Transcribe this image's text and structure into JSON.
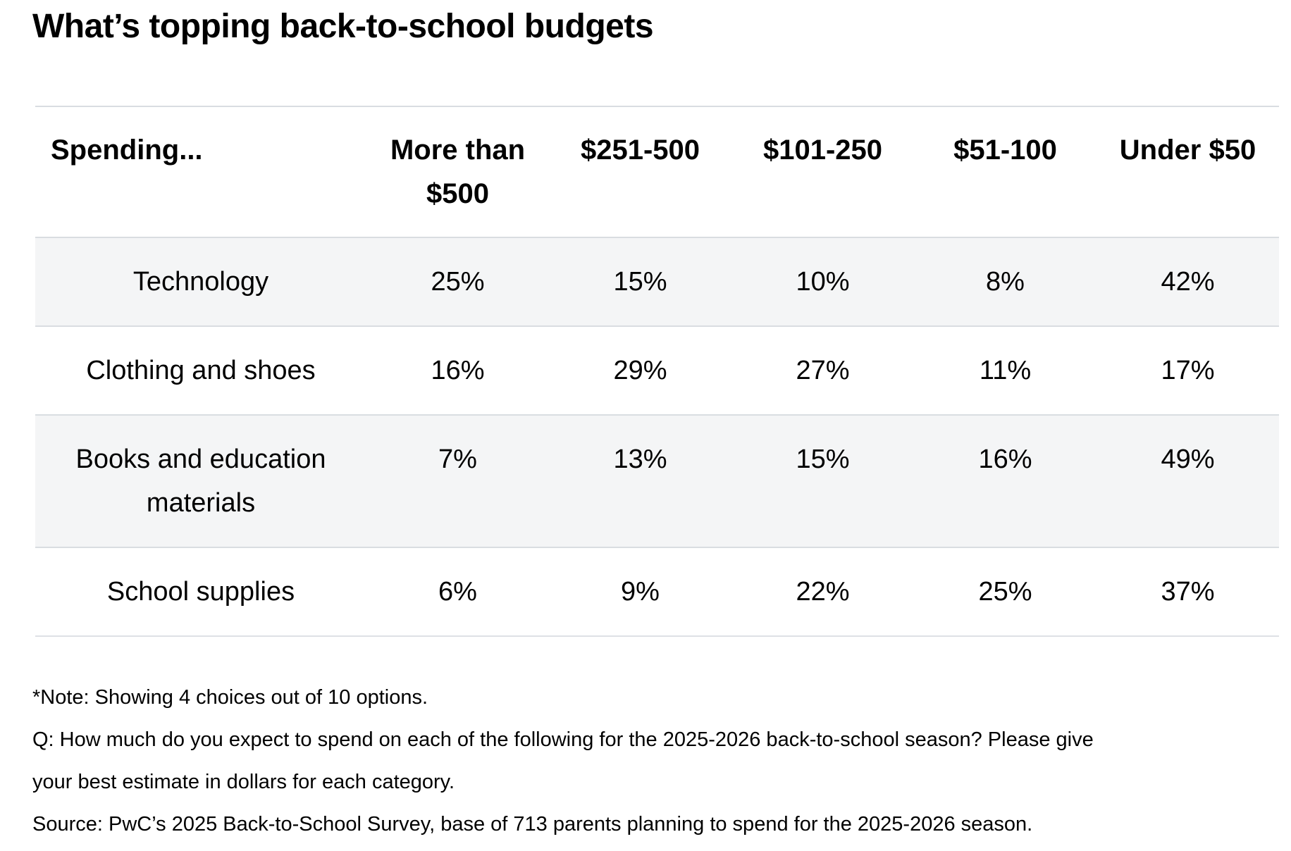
{
  "title": "What’s topping back-to-school budgets",
  "table": {
    "columns": [
      "Spending...",
      "More than $500",
      "$251-500",
      "$101-250",
      "$51-100",
      "Under $50"
    ],
    "rows": [
      {
        "label": "Technology",
        "values": [
          "25%",
          "15%",
          "10%",
          "8%",
          "42%"
        ]
      },
      {
        "label": "Clothing and shoes",
        "values": [
          "16%",
          "29%",
          "27%",
          "11%",
          "17%"
        ]
      },
      {
        "label": "Books and education materials",
        "values": [
          "7%",
          "13%",
          "15%",
          "16%",
          "49%"
        ]
      },
      {
        "label": "School supplies",
        "values": [
          "6%",
          "9%",
          "22%",
          "25%",
          "37%"
        ]
      }
    ]
  },
  "footer": {
    "lines": [
      "*Note: Showing 4 choices out of 10 options.",
      "Q: How much do you expect to spend on each of the following for the 2025-2026 back-to-school season? Please give",
      "your best estimate in dollars for each category.",
      "Source: PwC’s 2025 Back-to-School Survey, base of 713 parents planning to spend for the 2025-2026 season."
    ]
  },
  "colors": {
    "text": "#000000",
    "row_stripe": "#f4f5f6",
    "border": "#d9dde1",
    "background": "#ffffff"
  },
  "chart_data": {
    "type": "table",
    "title": "What’s topping back-to-school budgets",
    "columns": [
      "Spending...",
      "More than $500",
      "$251-500",
      "$101-250",
      "$51-100",
      "Under $50"
    ],
    "categories": [
      "Technology",
      "Clothing and shoes",
      "Books and education materials",
      "School supplies"
    ],
    "series": [
      {
        "name": "More than $500",
        "values": [
          25,
          16,
          7,
          6
        ]
      },
      {
        "name": "$251-500",
        "values": [
          15,
          29,
          13,
          9
        ]
      },
      {
        "name": "$101-250",
        "values": [
          10,
          27,
          15,
          22
        ]
      },
      {
        "name": "$51-100",
        "values": [
          8,
          11,
          16,
          25
        ]
      },
      {
        "name": "Under $50",
        "values": [
          42,
          17,
          49,
          37
        ]
      }
    ],
    "unit": "%",
    "note": "*Note: Showing 4 choices out of 10 options.",
    "question": "Q: How much do you expect to spend on each of the following for the 2025-2026 back-to-school season? Please give your best estimate in dollars for each category.",
    "source": "Source: PwC’s 2025 Back-to-School Survey, base of 713 parents planning to spend for the 2025-2026 season.",
    "layout": {
      "row_striping": true,
      "first_column_align": "center",
      "header_align": "center",
      "grid": "horizontal-borders-only"
    }
  }
}
